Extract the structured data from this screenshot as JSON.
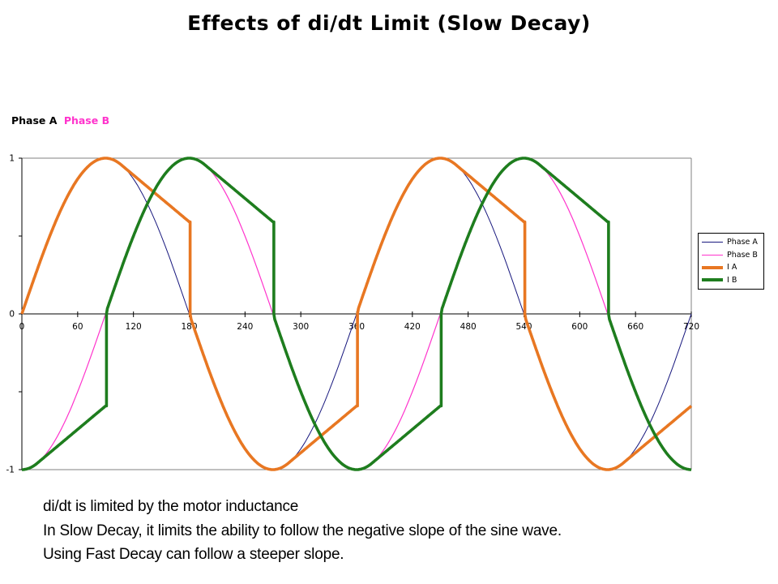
{
  "slide": {
    "title": "Effects of di/dt Limit (Slow Decay)",
    "notes_lines": [
      "di/dt is limited by the motor inductance",
      "In Slow Decay, it limits the ability to follow the negative slope of the sine wave.",
      "Using Fast Decay can follow a steeper slope."
    ]
  },
  "phase_header": {
    "phase_a": "Phase A",
    "phase_b": "Phase B",
    "phase_a_color": "#000000",
    "phase_b_color": "#FF33CC"
  },
  "chart_data": {
    "type": "line",
    "title": "",
    "xlabel": "",
    "ylabel": "",
    "x_range_deg": [
      0,
      720
    ],
    "x_ticks": [
      0,
      60,
      120,
      180,
      240,
      300,
      360,
      420,
      480,
      540,
      600,
      660,
      720
    ],
    "y_ticks_labeled": [
      {
        "value": 1,
        "label": "1"
      },
      {
        "value": 0,
        "label": "0"
      },
      {
        "value": -1,
        "label": "-1"
      }
    ],
    "y_ticks_minor": [
      0.5,
      -0.5
    ],
    "ylim": [
      -1,
      1
    ],
    "grid": "boundary lines at y=1, y=-1 and right edge only",
    "legend_position": "right",
    "axis_color": "#000000",
    "boundary_color": "#808080",
    "series": [
      {
        "name": "Phase A",
        "color": "#18187E",
        "width": 1,
        "model": "sine",
        "phase_deg": 0,
        "amplitude": 1
      },
      {
        "name": "Phase B",
        "color": "#FF33CC",
        "width": 1.2,
        "model": "sine",
        "phase_deg": 90,
        "amplitude": 1
      },
      {
        "name": "I A",
        "color": "#E87722",
        "width": 3.6,
        "model": "slow_decay_limited_sine",
        "phase_deg": 0,
        "amplitude": 1,
        "decay_limit_per_deg": 0.005,
        "start_value": 0,
        "commutation_jumps_to_zero_at_deg": [
          180,
          360,
          540
        ],
        "approx_value_before_jump": 0.59
      },
      {
        "name": "I B",
        "color": "#1E7D1E",
        "width": 3.6,
        "model": "slow_decay_limited_sine",
        "phase_deg": 90,
        "amplitude": 1,
        "decay_limit_per_deg": 0.005,
        "start_value": -1,
        "commutation_jumps_to_zero_at_deg": [
          90,
          270,
          450,
          630
        ],
        "approx_value_before_jump": 0.59
      }
    ]
  }
}
